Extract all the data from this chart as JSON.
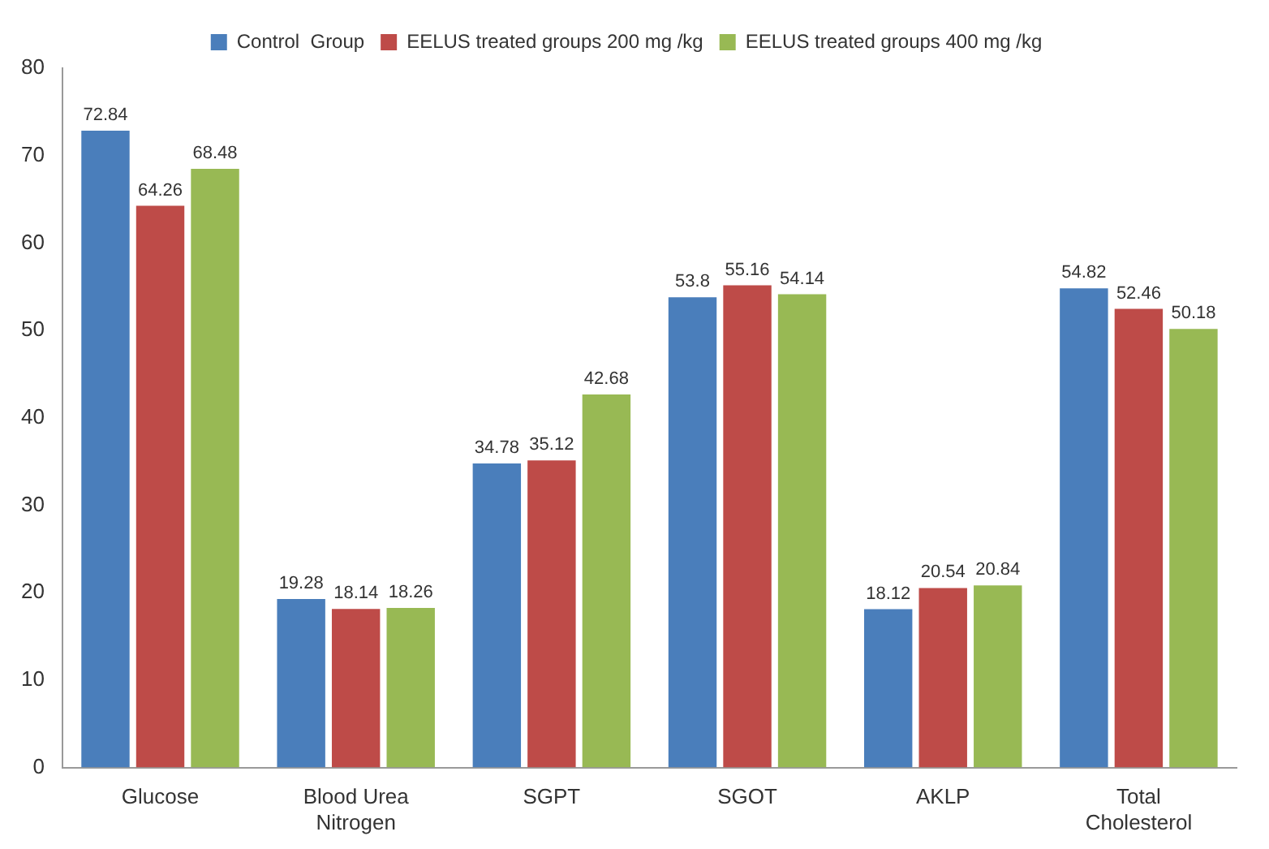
{
  "chart_data": {
    "type": "bar",
    "categories": [
      "Glucose",
      "Blood Urea Nitrogen",
      "SGPT",
      "SGOT",
      "AKLP",
      "Total Cholesterol"
    ],
    "series": [
      {
        "name": "Control  Group",
        "color": "#4a7ebb",
        "values": [
          72.84,
          19.28,
          34.78,
          53.8,
          18.12,
          54.82
        ]
      },
      {
        "name": "EELUS treated groups 200 mg /kg",
        "color": "#be4b48",
        "values": [
          64.26,
          18.14,
          35.12,
          55.16,
          20.54,
          52.46
        ]
      },
      {
        "name": "EELUS treated groups 400 mg /kg",
        "color": "#98b954",
        "values": [
          68.48,
          18.26,
          42.68,
          54.14,
          20.84,
          50.18
        ]
      }
    ],
    "ylim": [
      0,
      80
    ],
    "yticks": [
      0,
      10,
      20,
      30,
      40,
      50,
      60,
      70,
      80
    ],
    "grid": false,
    "legend": "top",
    "data_labels": true
  }
}
